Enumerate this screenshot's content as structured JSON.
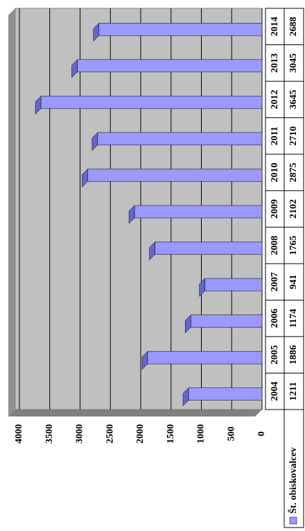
{
  "chart_data": {
    "type": "bar",
    "orientation": "horizontal",
    "categories": [
      "2004",
      "2005",
      "2006",
      "2007",
      "2008",
      "2009",
      "2010",
      "2011",
      "2012",
      "2013",
      "2014"
    ],
    "series": [
      {
        "name": "Št. obiskovalcev",
        "color": "#9999ff",
        "values": [
          1211,
          1886,
          1174,
          941,
          1765,
          2102,
          2875,
          2710,
          3645,
          3045,
          2688
        ]
      }
    ],
    "ylim": [
      0,
      4000
    ],
    "yticks": [
      0,
      500,
      1000,
      1500,
      2000,
      2500,
      3000,
      3500,
      4000
    ],
    "grid": true
  }
}
